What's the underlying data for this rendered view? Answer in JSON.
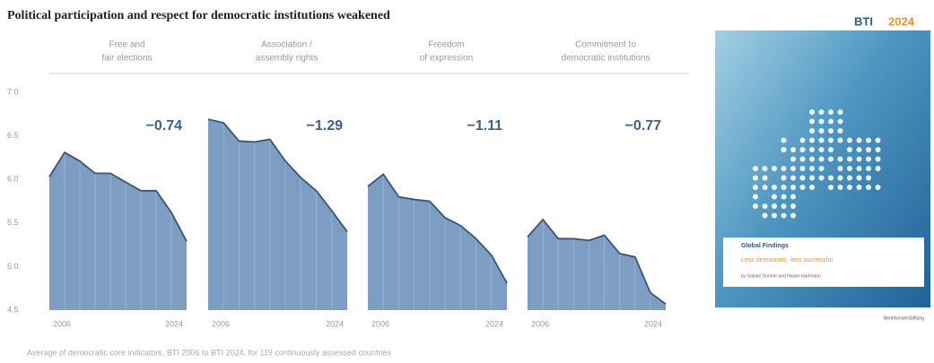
{
  "title": "Political participation and respect for democratic institutions weakened",
  "note": "Average of democratic core indicators, BTI 2006 to BTI 2024, for 119 continuously assessed countries",
  "chart_data": [
    {
      "type": "area",
      "title": [
        "Free and",
        "fair elections"
      ],
      "annotation": "−0.74",
      "categories": [
        "2006",
        null,
        null,
        null,
        null,
        null,
        null,
        null,
        null,
        "2024"
      ],
      "values": [
        6.03,
        6.31,
        6.21,
        6.07,
        6.07,
        5.97,
        5.87,
        5.87,
        5.62,
        5.29
      ],
      "color": "#7e9dc2",
      "line_color": "#34557f",
      "ylim": [
        4.5,
        7.0
      ],
      "yticks": [
        4.5,
        {
          "value": 5.0,
          "label": "5.0"
        },
        5.5,
        {
          "value": 6.0,
          "label": "6.0"
        },
        6.5,
        {
          "value": 7.0,
          "label": "7.0"
        }
      ]
    },
    {
      "type": "area",
      "title": [
        "Association /",
        "assembly rights"
      ],
      "annotation": "−1.29",
      "categories": [
        "2006",
        null,
        null,
        null,
        null,
        null,
        null,
        null,
        null,
        "2024"
      ],
      "values": [
        6.69,
        6.65,
        6.44,
        6.43,
        6.46,
        6.21,
        6.02,
        5.87,
        5.64,
        5.4
      ],
      "color": "#7e9dc2",
      "line_color": "#34557f",
      "ylim": [
        4.5,
        7.0
      ]
    },
    {
      "type": "area",
      "title": [
        "Freedom",
        "of expression"
      ],
      "annotation": "−1.11",
      "categories": [
        "2006",
        null,
        null,
        null,
        null,
        null,
        null,
        null,
        null,
        "2024"
      ],
      "values": [
        5.92,
        6.06,
        5.8,
        5.77,
        5.75,
        5.56,
        5.47,
        5.32,
        5.13,
        4.81
      ],
      "color": "#7e9dc2",
      "line_color": "#34557f",
      "ylim": [
        4.5,
        7.0
      ]
    },
    {
      "type": "area",
      "title": [
        "Commitment to",
        "democratic institutions"
      ],
      "annotation": "−0.77",
      "categories": [
        "2006",
        null,
        null,
        null,
        null,
        null,
        null,
        null,
        null,
        "2024"
      ],
      "values": [
        5.34,
        5.54,
        5.32,
        5.32,
        5.3,
        5.36,
        5.15,
        5.11,
        4.7,
        4.57
      ],
      "color": "#7e9dc2",
      "line_color": "#34557f",
      "ylim": [
        4.5,
        7.0
      ]
    }
  ],
  "cover": {
    "brand": "BTI",
    "year": "2024",
    "heading": "Global Findings",
    "subtitle": "Less democratic, less successful",
    "authors": "by Sabine Donner and Hauke Hartmann",
    "publisher": "BertelsmannStiftung"
  }
}
